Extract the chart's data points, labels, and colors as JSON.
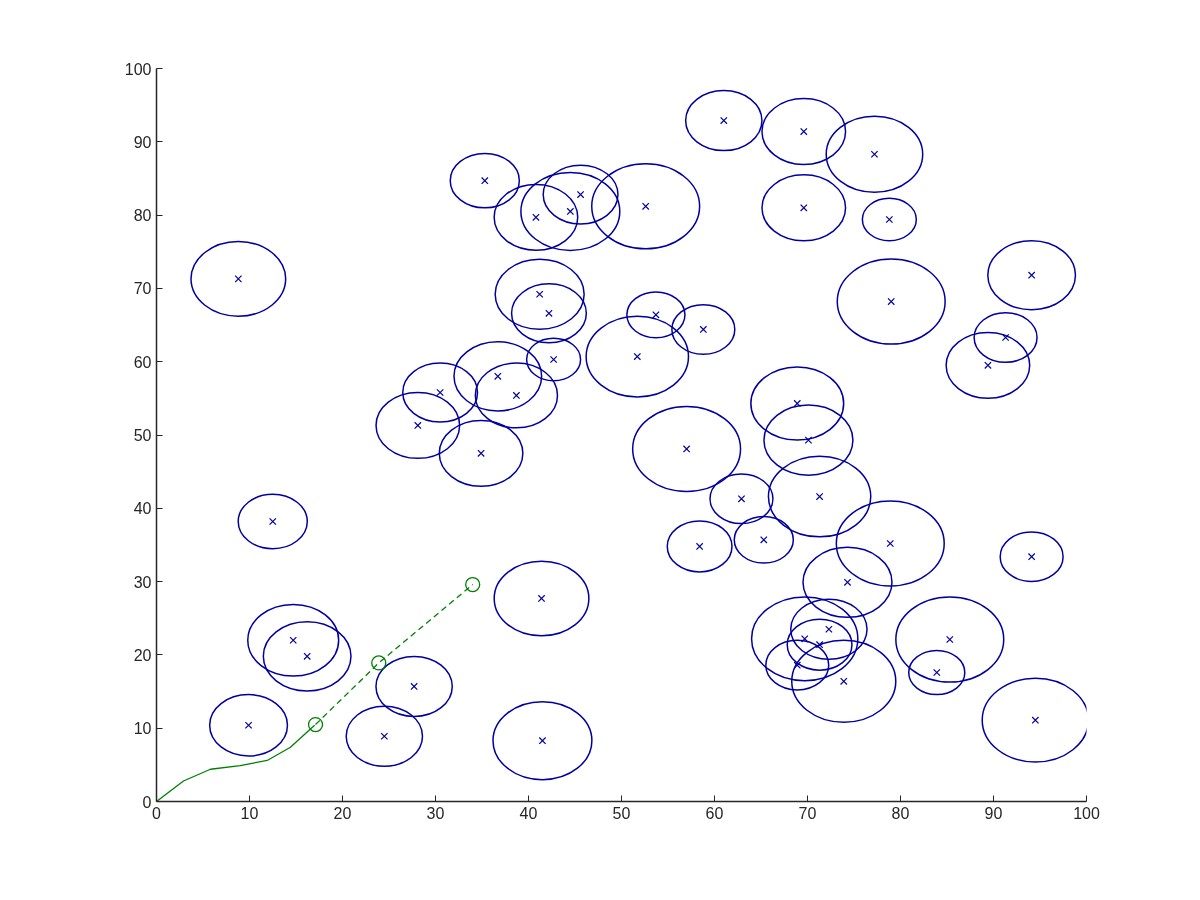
{
  "chart_data": {
    "type": "bubble",
    "xlim": [
      0,
      100
    ],
    "ylim": [
      0,
      100
    ],
    "xticks": [
      0,
      10,
      20,
      30,
      40,
      50,
      60,
      70,
      80,
      90,
      100
    ],
    "yticks": [
      0,
      10,
      20,
      30,
      40,
      50,
      60,
      70,
      80,
      90,
      100
    ],
    "grid": false,
    "series": [
      {
        "color": "#0000a0",
        "marker": "cross",
        "x": [
          8.8,
          12.5,
          9.9,
          14.7,
          16.2,
          24.5,
          27.7,
          28.1,
          30.5,
          34.9,
          35.3,
          36.7,
          38.7,
          40.8,
          44.5,
          45.6,
          52.6,
          41.2,
          42.2,
          42.7,
          51.7,
          53.7,
          58.8,
          61.0,
          57.0,
          41.4,
          41.5,
          58.4,
          62.9,
          65.3,
          71.3,
          78.9,
          74.3,
          94.1,
          85.3,
          83.9,
          94.5,
          73.9,
          69.7,
          72.3,
          71.3,
          68.9,
          69.6,
          77.2,
          69.6,
          78.8,
          79.0,
          94.1,
          91.3,
          89.4,
          68.9,
          70.1
        ],
        "values": [
          71.3,
          38.2,
          10.4,
          22.0,
          19.8,
          8.9,
          15.7,
          51.3,
          55.8,
          47.5,
          84.7,
          58.0,
          55.4,
          79.7,
          80.5,
          82.8,
          81.2,
          69.2,
          66.6,
          60.3,
          60.7,
          66.4,
          64.4,
          92.9,
          48.1,
          27.7,
          8.3,
          34.8,
          41.3,
          35.7,
          41.6,
          35.2,
          29.9,
          33.4,
          22.1,
          17.6,
          11.1,
          16.4,
          22.2,
          23.5,
          21.4,
          18.6,
          91.4,
          88.3,
          81.0,
          79.4,
          68.2,
          71.8,
          63.3,
          59.5,
          54.3,
          49.3
        ],
        "sizes": [
          0.77,
          0.41,
          0.52,
          0.71,
          0.66,
          0.5,
          0.5,
          0.6,
          0.48,
          0.6,
          0.41,
          0.66,
          0.58,
          0.6,
          0.84,
          0.48,
          1,
          0.68,
          0.48,
          0.25,
          0.9,
          0.29,
          0.34,
          0.5,
          1,
          0.77,
          0.84,
          0.36,
          0.34,
          0.3,
          0.9,
          1,
          0.68,
          0.34,
          1,
          0.27,
          0.97,
          0.93,
          0.97,
          0.5,
          0.36,
          0.34,
          0.6,
          0.8,
          0.6,
          0.25,
          1,
          0.66,
          0.34,
          0.6,
          0.74,
          0.68
        ]
      },
      {
        "type": "line",
        "color": "#008000",
        "line_style": "solid",
        "marker": "none",
        "x": [
          0,
          2.9,
          5.8,
          9.0,
          11.9,
          14.4,
          17.0
        ],
        "values": [
          0,
          2.8,
          4.4,
          4.9,
          5.6,
          7.4,
          10.4
        ]
      },
      {
        "type": "line",
        "color": "#008000",
        "line_style": "dashed",
        "marker": "circle",
        "x": [
          17.1,
          23.9,
          34.0
        ],
        "values": [
          10.5,
          18.9,
          29.6
        ]
      }
    ]
  }
}
